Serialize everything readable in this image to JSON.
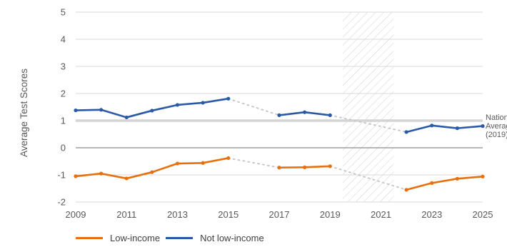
{
  "chart_data": {
    "type": "line",
    "ylabel": "Average Test Scores",
    "xlim": [
      2009,
      2025
    ],
    "ylim": [
      -2,
      5
    ],
    "x_ticks": [
      "2009",
      "2011",
      "2013",
      "2015",
      "2017",
      "2019",
      "2021",
      "2023",
      "2025"
    ],
    "y_ticks": [
      "5",
      "4",
      "3",
      "2",
      "1",
      "0",
      "-1",
      "-2"
    ],
    "grid": true,
    "legend_position": "bottom-left",
    "reference_line": {
      "value": 1,
      "label_lines": [
        "National",
        "Average",
        "(2019)"
      ]
    },
    "shaded_range": [
      2019.5,
      2021.5
    ],
    "series": [
      {
        "name": "Low-income",
        "color": "#e8700c",
        "segments": [
          {
            "x": [
              2009,
              2010,
              2011,
              2012,
              2013,
              2014,
              2015
            ],
            "y": [
              -1.05,
              -0.95,
              -1.13,
              -0.9,
              -0.58,
              -0.56,
              -0.38
            ]
          },
          {
            "x": [
              2017,
              2018,
              2019
            ],
            "y": [
              -0.73,
              -0.72,
              -0.68
            ]
          },
          {
            "x": [
              2022,
              2023,
              2024,
              2025
            ],
            "y": [
              -1.55,
              -1.3,
              -1.14,
              -1.06
            ]
          }
        ]
      },
      {
        "name": "Not low-income",
        "color": "#2a59a8",
        "segments": [
          {
            "x": [
              2009,
              2010,
              2011,
              2012,
              2013,
              2014,
              2015
            ],
            "y": [
              1.38,
              1.4,
              1.12,
              1.37,
              1.58,
              1.66,
              1.81
            ]
          },
          {
            "x": [
              2017,
              2018,
              2019
            ],
            "y": [
              1.2,
              1.31,
              1.2
            ]
          },
          {
            "x": [
              2022,
              2023,
              2024,
              2025
            ],
            "y": [
              0.58,
              0.82,
              0.72,
              0.8
            ]
          }
        ]
      }
    ]
  }
}
